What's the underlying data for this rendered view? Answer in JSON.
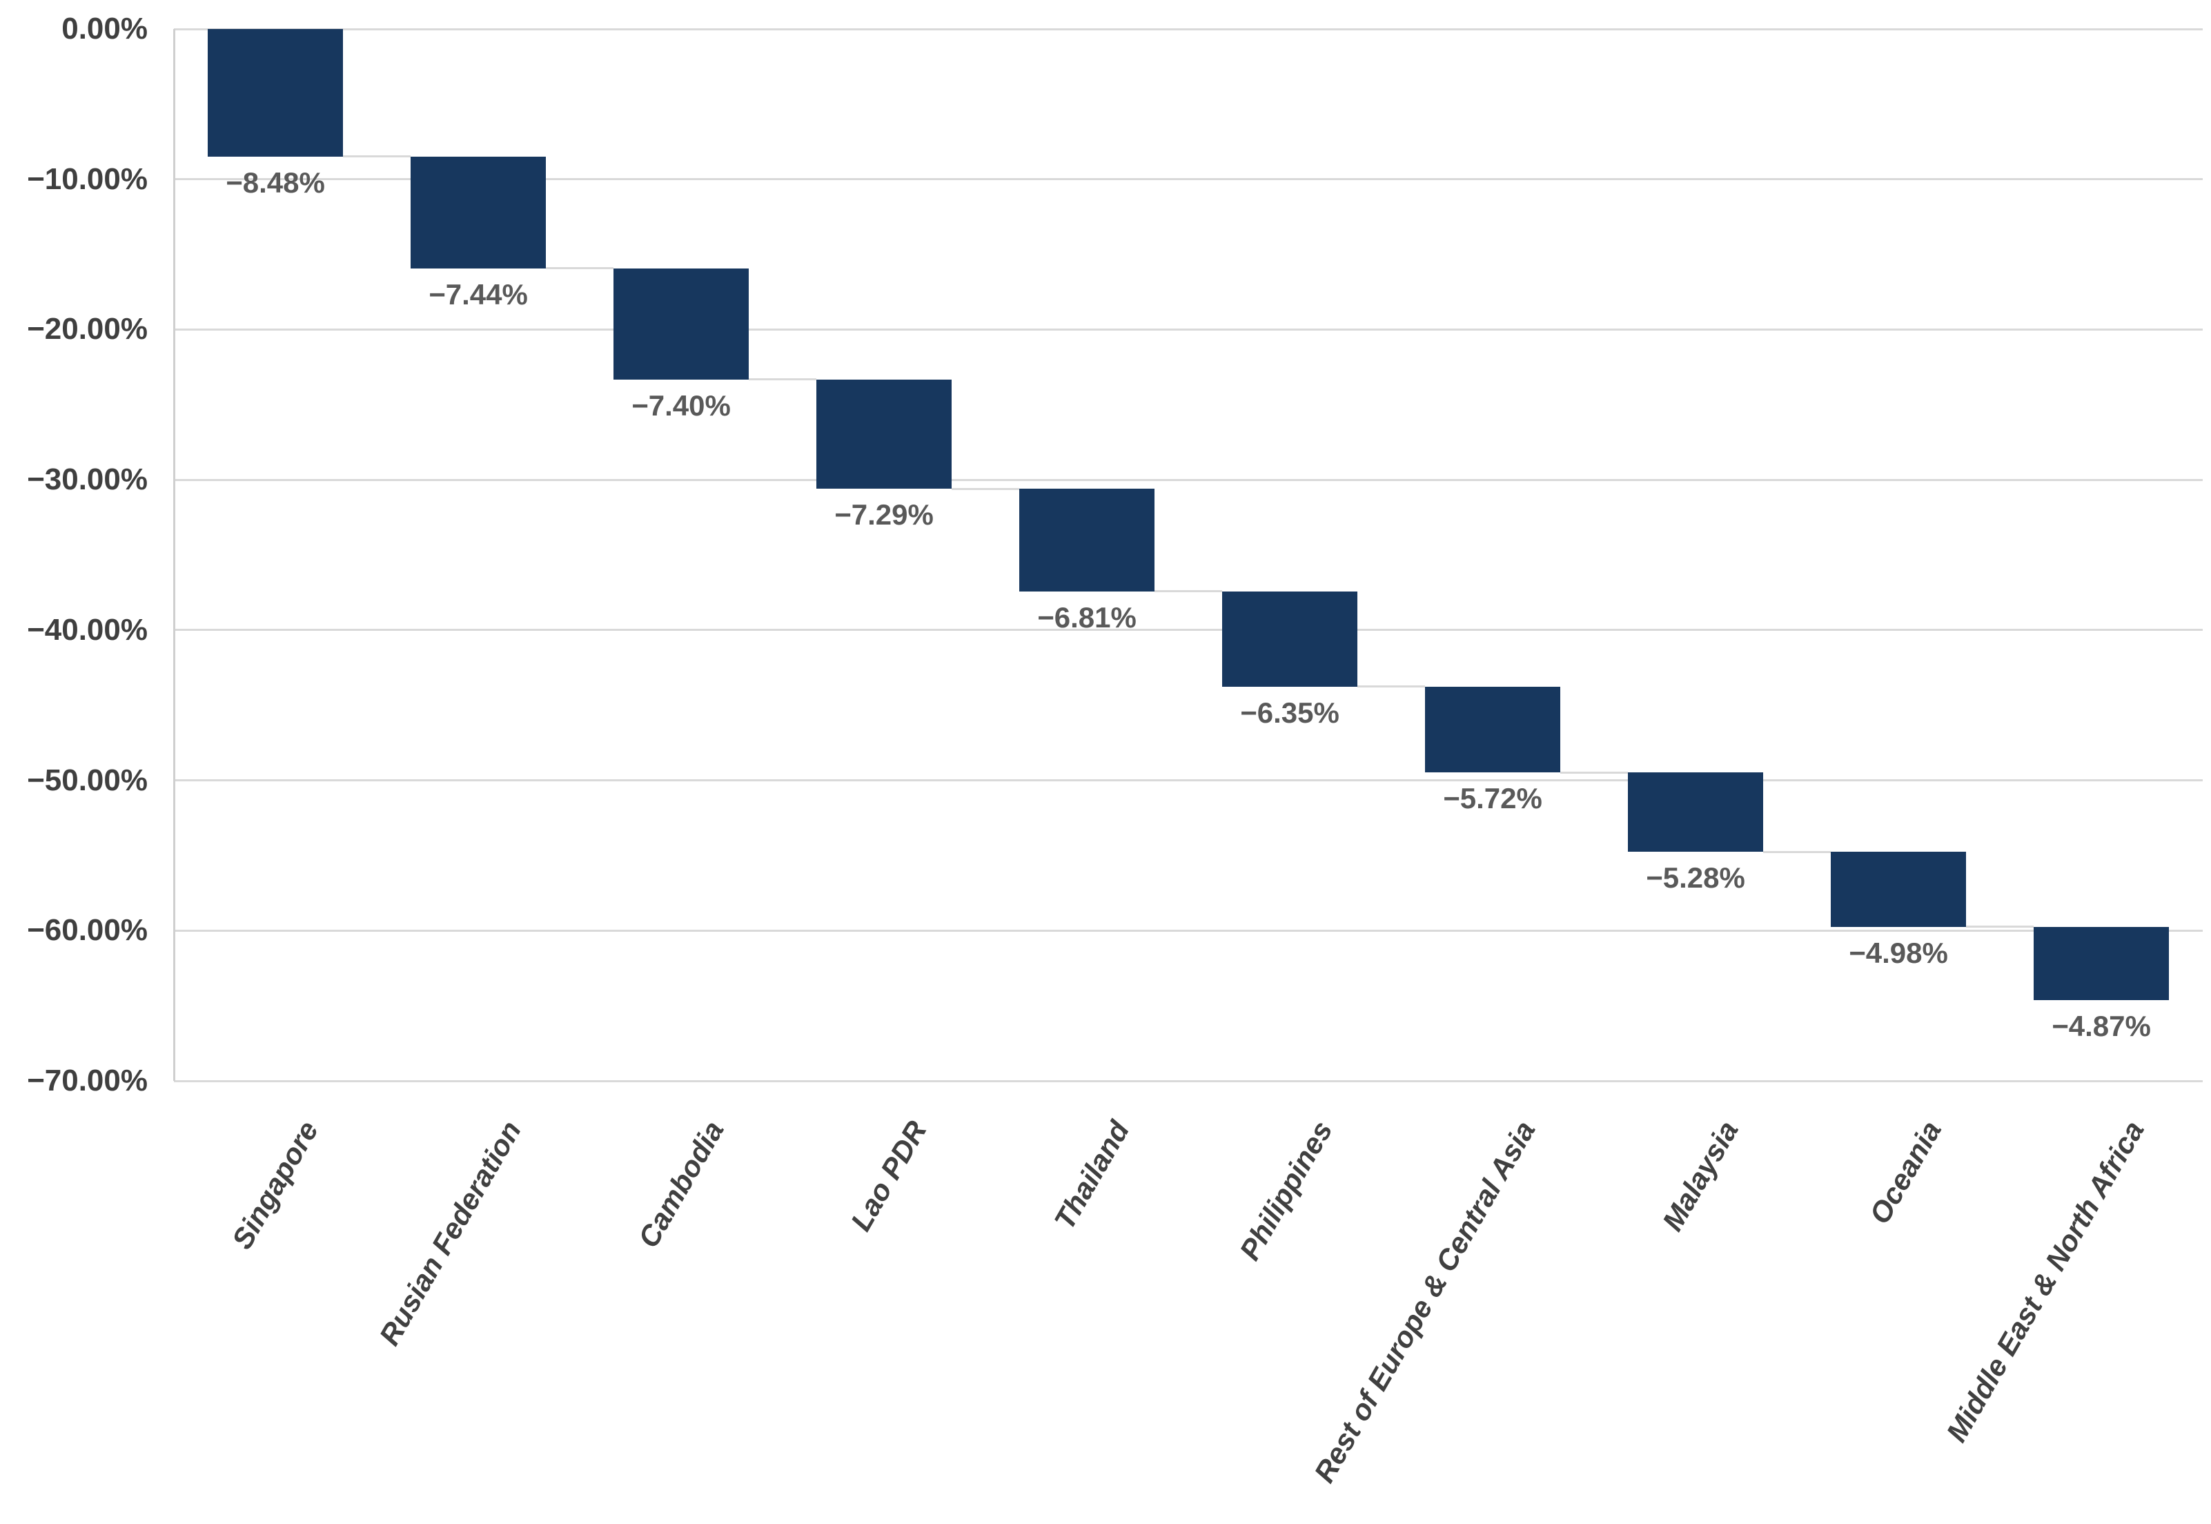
{
  "chart_data": {
    "type": "bar",
    "subtype": "waterfall",
    "title": "",
    "xlabel": "",
    "ylabel": "",
    "grid": true,
    "legend": false,
    "ylim": [
      -70,
      0
    ],
    "categories": [
      "Singapore",
      "Rusian Federation",
      "Cambodia",
      "Lao PDR",
      "Thailand",
      "Philippines",
      "Rest of Europe & Central Asia",
      "Malaysia",
      "Oceania",
      "Middle East & North Africa"
    ],
    "values": [
      -8.48,
      -7.44,
      -7.4,
      -7.29,
      -6.81,
      -6.35,
      -5.72,
      -5.28,
      -4.98,
      -4.87
    ],
    "value_labels": [
      "−8.48%",
      "−7.44%",
      "−7.40%",
      "−7.29%",
      "−6.81%",
      "−6.35%",
      "−5.72%",
      "−5.28%",
      "−4.98%",
      "−4.87%"
    ],
    "cumulative_ends": [
      -8.48,
      -15.92,
      -23.32,
      -30.61,
      -37.42,
      -43.77,
      -49.49,
      -54.77,
      -59.75,
      -64.62
    ],
    "y_ticks": [
      {
        "value": 0,
        "label": "0.00%"
      },
      {
        "value": -10,
        "label": "−10.00%"
      },
      {
        "value": -20,
        "label": "−20.00%"
      },
      {
        "value": -30,
        "label": "−30.00%"
      },
      {
        "value": -40,
        "label": "−40.00%"
      },
      {
        "value": -50,
        "label": "−50.00%"
      },
      {
        "value": -60,
        "label": "−60.00%"
      },
      {
        "value": -70,
        "label": "−70.00%"
      }
    ],
    "colors": {
      "bar": "#17375e",
      "value_label": "#595959",
      "axis_text": "#3f3f3f",
      "category_text": "#404040",
      "gridline": "#d9d9d9",
      "background": "#ffffff"
    }
  }
}
